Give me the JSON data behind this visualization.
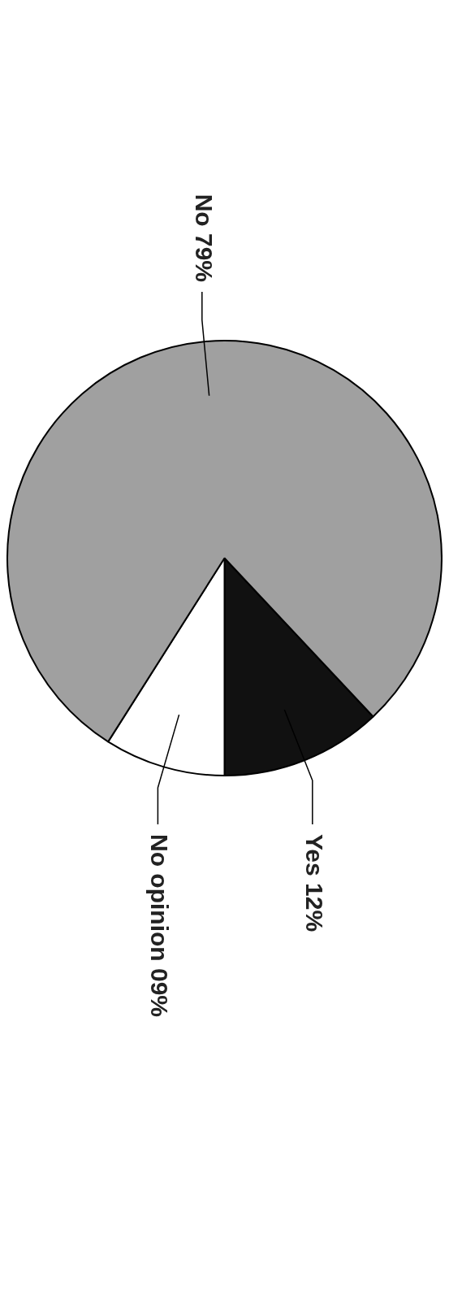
{
  "chart_data": {
    "type": "pie",
    "categories": [
      "Yes",
      "No opinion",
      "No"
    ],
    "values": [
      12,
      9,
      79
    ],
    "value_labels": [
      "12%",
      "09%",
      "79%"
    ],
    "colors": [
      "#111111",
      "#ffffff",
      "#a0a0a0"
    ],
    "legend": false
  }
}
